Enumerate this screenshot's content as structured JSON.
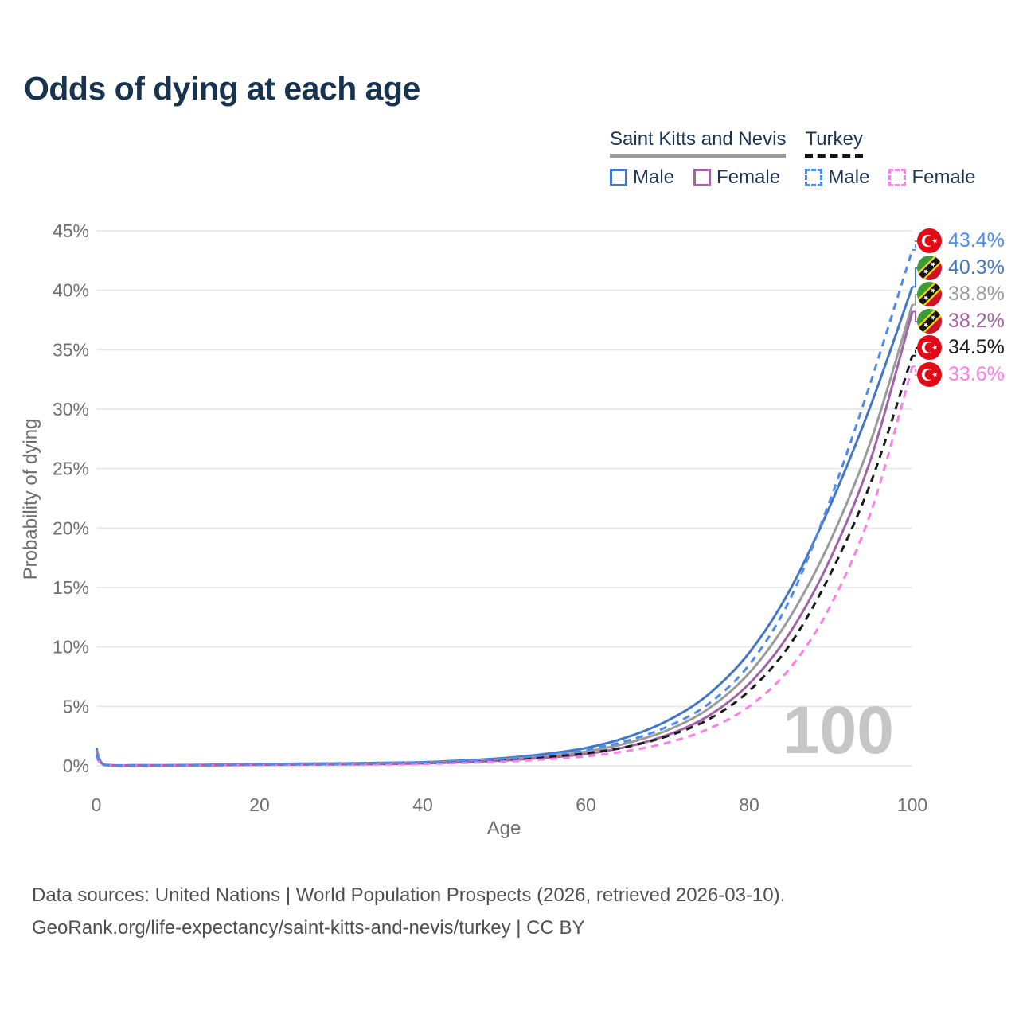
{
  "title": "Odds of dying at each age",
  "legend": {
    "groups": [
      {
        "name": "Saint Kitts and Nevis",
        "line_style": "solid",
        "underline_color": "#9a9a9a",
        "items": [
          {
            "label": "Male",
            "color": "#4377c6"
          },
          {
            "label": "Female",
            "color": "#a263a8"
          }
        ]
      },
      {
        "name": "Turkey",
        "line_style": "dashed",
        "underline_color": "#141414",
        "items": [
          {
            "label": "Male",
            "color": "#4b8bf2"
          },
          {
            "label": "Female",
            "color": "#fc7ee7"
          }
        ]
      }
    ]
  },
  "chart_data": {
    "type": "line",
    "title": "Odds of dying at each age",
    "xlabel": "Age",
    "ylabel": "Probability of dying",
    "xlim": [
      0,
      100
    ],
    "ylim": [
      0,
      45
    ],
    "xticks": [
      0,
      20,
      40,
      60,
      80,
      100
    ],
    "yticks": [
      0,
      5,
      10,
      15,
      20,
      25,
      30,
      35,
      40,
      45
    ],
    "ytick_suffix": "%",
    "grid": "horizontal-only",
    "legend_position": "top-right",
    "watermark": "100",
    "ages": [
      0,
      1,
      5,
      10,
      15,
      20,
      25,
      30,
      35,
      40,
      45,
      50,
      55,
      60,
      65,
      70,
      75,
      80,
      85,
      90,
      95,
      100
    ],
    "series": [
      {
        "name": "Turkey Male",
        "country": "Turkey",
        "sex": "Male",
        "color": "#4b8bf2",
        "dash": true,
        "flag": "tr",
        "end_label": "43.4%",
        "end_value": 43.4,
        "values": [
          1.0,
          0.08,
          0.04,
          0.05,
          0.08,
          0.12,
          0.15,
          0.18,
          0.22,
          0.28,
          0.4,
          0.6,
          0.9,
          1.35,
          2.1,
          3.3,
          5.2,
          8.5,
          14.0,
          22.5,
          32.5,
          43.4
        ]
      },
      {
        "name": "Saint Kitts and Nevis Male",
        "country": "Saint Kitts and Nevis",
        "sex": "Male",
        "color": "#4377c6",
        "dash": false,
        "flag": "kn",
        "end_label": "40.3%",
        "end_value": 40.3,
        "values": [
          1.5,
          0.1,
          0.05,
          0.06,
          0.1,
          0.15,
          0.18,
          0.2,
          0.25,
          0.3,
          0.45,
          0.65,
          1.0,
          1.5,
          2.4,
          3.8,
          6.0,
          9.5,
          14.8,
          22.0,
          30.5,
          40.3
        ]
      },
      {
        "name": "Saint Kitts and Nevis Both sexes",
        "country": "Saint Kitts and Nevis",
        "sex": "Both",
        "color": "#9b9b9b",
        "dash": false,
        "flag": "kn",
        "end_label": "38.8%",
        "end_value": 38.8,
        "values": [
          1.3,
          0.09,
          0.04,
          0.05,
          0.08,
          0.12,
          0.15,
          0.17,
          0.2,
          0.25,
          0.37,
          0.55,
          0.8,
          1.2,
          1.9,
          3.0,
          4.8,
          7.8,
          12.5,
          19.0,
          27.5,
          38.8
        ]
      },
      {
        "name": "Saint Kitts and Nevis Female",
        "country": "Saint Kitts and Nevis",
        "sex": "Female",
        "color": "#a263a8",
        "dash": false,
        "flag": "kn",
        "end_label": "38.2%",
        "end_value": 38.2,
        "values": [
          1.1,
          0.08,
          0.04,
          0.04,
          0.06,
          0.08,
          0.1,
          0.12,
          0.15,
          0.2,
          0.3,
          0.45,
          0.68,
          1.0,
          1.6,
          2.6,
          4.2,
          6.9,
          11.2,
          17.5,
          26.0,
          38.2
        ]
      },
      {
        "name": "Turkey Both sexes",
        "country": "Turkey",
        "sex": "Both",
        "color": "#1a1a1a",
        "dash": true,
        "flag": "tr",
        "end_label": "34.5%",
        "end_value": 34.5,
        "values": [
          0.9,
          0.07,
          0.03,
          0.04,
          0.06,
          0.1,
          0.12,
          0.14,
          0.17,
          0.22,
          0.32,
          0.48,
          0.72,
          1.05,
          1.6,
          2.5,
          3.9,
          6.3,
          10.2,
          16.2,
          24.0,
          34.5
        ]
      },
      {
        "name": "Turkey Female",
        "country": "Turkey",
        "sex": "Female",
        "color": "#fc7ee7",
        "dash": true,
        "flag": "tr",
        "end_label": "33.6%",
        "end_value": 33.6,
        "values": [
          0.8,
          0.06,
          0.03,
          0.03,
          0.05,
          0.07,
          0.09,
          0.1,
          0.12,
          0.16,
          0.24,
          0.36,
          0.55,
          0.8,
          1.25,
          1.95,
          3.1,
          5.0,
          8.2,
          13.5,
          21.5,
          33.6
        ]
      }
    ]
  },
  "footer": {
    "line1": "Data sources: United Nations | World Population Prospects (2026, retrieved 2026-03-10).",
    "line2": "GeoRank.org/life-expectancy/saint-kitts-and-nevis/turkey | CC BY"
  }
}
